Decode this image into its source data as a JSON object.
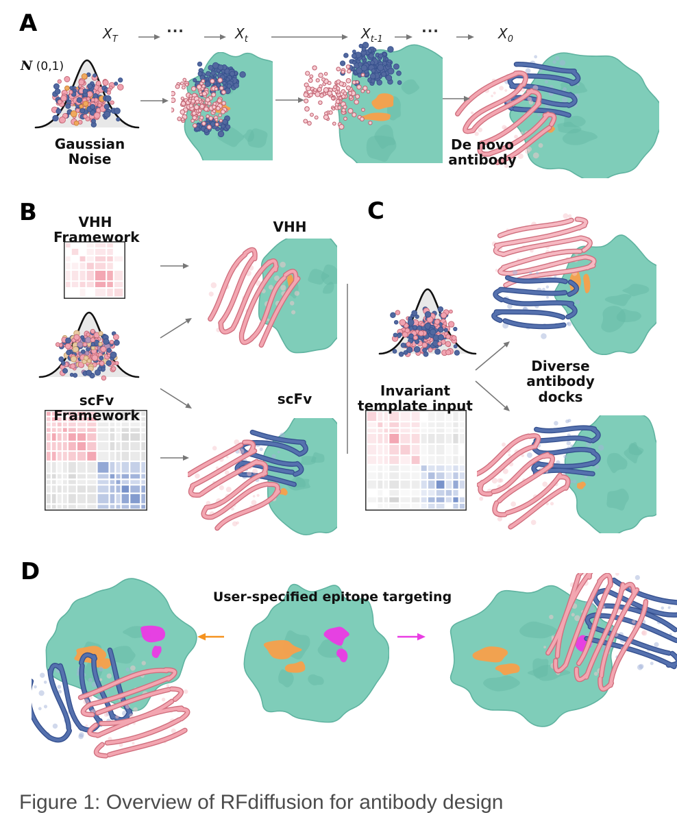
{
  "figure_caption": "Figure 1: Overview of RFdiffusion for antibody design",
  "panel_a": {
    "label": "A",
    "chain": {
      "x_T": {
        "base": "X",
        "sub": "T"
      },
      "dots": "···",
      "x_t": {
        "base": "X",
        "sub": "t"
      },
      "x_t1": {
        "base": "X",
        "sub": "t-1"
      },
      "x_0": {
        "base": "X",
        "sub": "0"
      }
    },
    "gaussian_symbol": "N",
    "gaussian_dist": "(0,1)",
    "gaussian_label": [
      "Gaussian",
      "Noise"
    ],
    "result_label": [
      "De novo",
      "antibody"
    ]
  },
  "panel_b": {
    "label": "B",
    "vhh_framework": [
      "VHH",
      "Framework"
    ],
    "scfv_framework": "scFv Framework",
    "vhh_result": "VHH",
    "scfv_result": "scFv"
  },
  "panel_c": {
    "label": "C",
    "template_input": [
      "Invariant",
      "template input"
    ],
    "docks": [
      "Diverse",
      "antibody",
      "docks"
    ]
  },
  "panel_d": {
    "label": "D",
    "title": "User-specified epitope targeting"
  },
  "colors": {
    "target_teal": "#7FCDB9",
    "antibody_pink": "#F3A6B1",
    "antibody_blue": "#5571AE",
    "epitope_orange": "#F5A04C",
    "epitope_magenta": "#E93CE3",
    "arrow_gray": "#777777",
    "matrix_pink": "#F2A0AC",
    "matrix_blue": "#6D89C6",
    "matrix_gray": "#C4C4C4",
    "caption_gray": "#4B4B4B"
  }
}
